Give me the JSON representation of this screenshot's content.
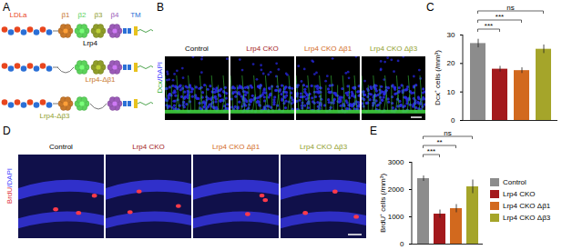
{
  "panel_labels": [
    "A",
    "B",
    "C",
    "D",
    "E"
  ],
  "diagram": {
    "ldla": {
      "label": "LDLa",
      "color": "#e8461e"
    },
    "propellers": [
      {
        "label": "β1",
        "color": "#c8782a"
      },
      {
        "label": "β2",
        "color": "#5cd35c"
      },
      {
        "label": "β3",
        "color": "#8f9d2a"
      },
      {
        "label": "β4",
        "color": "#9b5bb8"
      }
    ],
    "tm": {
      "label": "TM",
      "color": "#2a6fd6"
    },
    "constructs": [
      {
        "label": "Lrp4",
        "deleted": null
      },
      {
        "label": "Lrp4-Δβ1",
        "deleted": "β1"
      },
      {
        "label": "Lrp4-Δβ3",
        "deleted": "β3"
      }
    ]
  },
  "groups": [
    {
      "name": "Control",
      "color": "#000000"
    },
    {
      "name": "Lrp4 CKO",
      "color": "#a3191c"
    },
    {
      "name": "Lrp4 CKO Δβ1",
      "color": "#d2691e"
    },
    {
      "name": "Lrp4 CKO Δβ3",
      "color": "#8f9d2a"
    }
  ],
  "micrographs": {
    "B": {
      "stain_label": [
        {
          "text": "Dcx",
          "color": "#2fae2f"
        },
        {
          "text": "/DAPI",
          "color": "#3b3bff"
        }
      ]
    },
    "D": {
      "stain_label": [
        {
          "text": "BrdU",
          "color": "#e0303a"
        },
        {
          "text": "/DAPI",
          "color": "#3b3bff"
        }
      ]
    }
  },
  "chart_data": [
    {
      "panel": "C",
      "type": "bar",
      "categories": [
        "Control",
        "Lrp4 CKO",
        "Lrp4 CKO Δβ1",
        "Lrp4 CKO Δβ3"
      ],
      "values": [
        27,
        18,
        17.5,
        25
      ],
      "errors": [
        1.5,
        1,
        1,
        1.5
      ],
      "colors": [
        "#8c8c8c",
        "#a3191c",
        "#d2691e",
        "#a5a52a"
      ],
      "y_label": "Dcx⁺ cells (/mm³)",
      "ylim": [
        0,
        30
      ],
      "yticks": [
        0,
        10,
        20,
        30
      ],
      "tick_labels": "y",
      "significance": [
        {
          "compare": [
            "Control",
            "Lrp4 CKO Δβ3"
          ],
          "label": "ns"
        },
        {
          "compare": [
            "Control",
            "Lrp4 CKO Δβ1"
          ],
          "label": "***"
        },
        {
          "compare": [
            "Control",
            "Lrp4 CKO"
          ],
          "label": "***"
        }
      ]
    },
    {
      "panel": "E",
      "type": "bar",
      "categories": [
        "Control",
        "Lrp4 CKO",
        "Lrp4 CKO Δβ1",
        "Lrp4 CKO Δβ3"
      ],
      "values": [
        2400,
        1100,
        1300,
        2100
      ],
      "errors": [
        100,
        150,
        150,
        250
      ],
      "colors": [
        "#8c8c8c",
        "#a3191c",
        "#d2691e",
        "#a5a52a"
      ],
      "y_label": "BrdU⁺ cells (/mm³)",
      "ylim": [
        0,
        3000
      ],
      "yticks": [
        0,
        1000,
        2000,
        3000
      ],
      "tick_labels": "y",
      "legend": "right",
      "significance": [
        {
          "compare": [
            "Control",
            "Lrp4 CKO Δβ3"
          ],
          "label": "ns"
        },
        {
          "compare": [
            "Control",
            "Lrp4 CKO Δβ1"
          ],
          "label": "**"
        },
        {
          "compare": [
            "Control",
            "Lrp4 CKO"
          ],
          "label": "***"
        }
      ]
    }
  ]
}
